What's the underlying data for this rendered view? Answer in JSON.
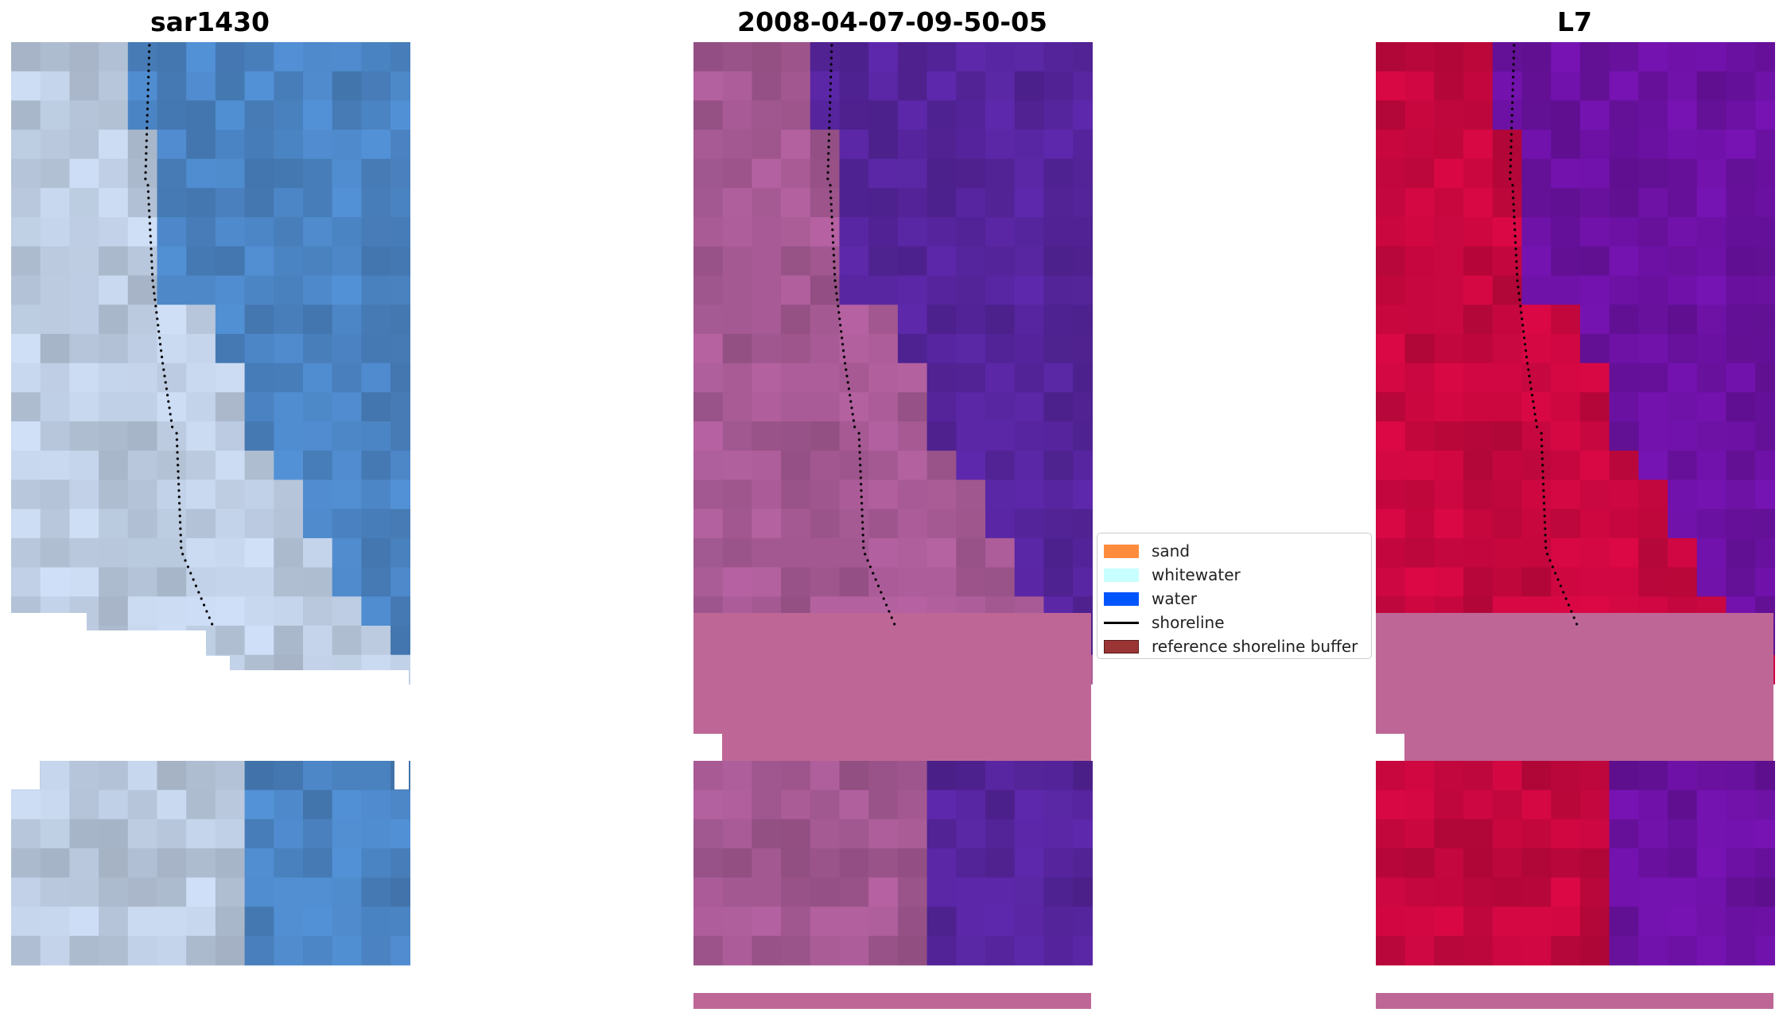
{
  "panels": [
    {
      "title": "sar1430",
      "type": "rgb"
    },
    {
      "title": "2008-04-07-09-50-05",
      "type": "classified"
    },
    {
      "title": "L7",
      "type": "mndwi"
    }
  ],
  "legend": [
    {
      "label": "sand",
      "color": "#ff8c3c",
      "kind": "patch"
    },
    {
      "label": "whitewater",
      "color": "#c8ffff",
      "kind": "patch"
    },
    {
      "label": "water",
      "color": "#0055ff",
      "kind": "patch"
    },
    {
      "label": "shoreline",
      "color": "#000000",
      "kind": "line"
    },
    {
      "label": "reference shoreline buffer",
      "color": "#9b3535",
      "kind": "patch"
    }
  ],
  "colors": {
    "rgb_land": "#b9c8dd",
    "rgb_water": "#4a82c0",
    "classified_land": "#a35891",
    "classified_water": "#54249a",
    "mndwi_land": "#c4073e",
    "mndwi_water": "#6a11a0",
    "cloud_mask": "#be6797",
    "shoreline_dots": "#000000"
  }
}
